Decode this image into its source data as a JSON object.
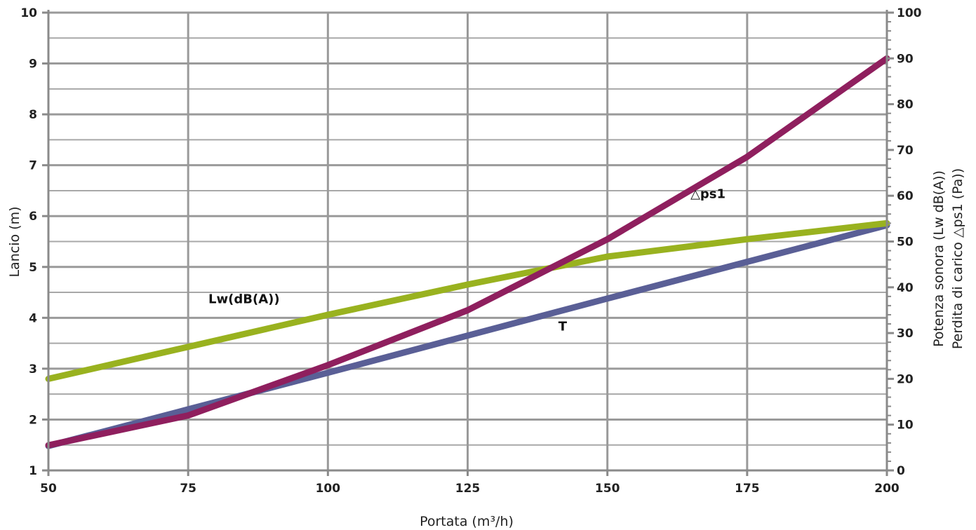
{
  "chart_data": {
    "type": "line",
    "xlabel": "Portata (m³/h)",
    "ylabel_left": "Lancio (m)",
    "ylabel_right": [
      "Potenza sonora (Lw dB(A))",
      "Perdita di carico △ps1 (Pa))"
    ],
    "xlim": [
      50,
      200
    ],
    "ylim_left": [
      1,
      10
    ],
    "ylim_right": [
      0,
      100
    ],
    "x_ticks": [
      "50",
      "75",
      "100",
      "125",
      "150",
      "175",
      "200"
    ],
    "y_left_ticks": [
      "1",
      "2",
      "3",
      "4",
      "5",
      "6",
      "7",
      "8",
      "9",
      "10"
    ],
    "y_right_ticks": [
      "0",
      "10",
      "20",
      "30",
      "40",
      "50",
      "60",
      "70",
      "80",
      "90",
      "100"
    ],
    "grid": true,
    "series": [
      {
        "name": "T",
        "axis": "left",
        "color": "#5a5f96",
        "x": [
          50,
          75,
          100,
          125,
          150,
          175,
          200
        ],
        "y": [
          1.48,
          2.2,
          2.92,
          3.65,
          4.38,
          5.1,
          5.82
        ]
      },
      {
        "name": "Lw(dB(A))",
        "axis": "right",
        "color": "#99b21f",
        "x": [
          50,
          75,
          100,
          125,
          150,
          175,
          200
        ],
        "y": [
          20,
          27,
          34,
          40.6,
          46.7,
          50.5,
          54
        ]
      },
      {
        "name": "△ps1",
        "axis": "right",
        "color": "#8f1f5e",
        "x": [
          50,
          75,
          100,
          125,
          150,
          175,
          200
        ],
        "y": [
          5.5,
          12,
          23,
          35,
          50.5,
          68.5,
          90
        ]
      }
    ],
    "annotations": [
      {
        "text": "Lw(dB(A))",
        "x": 85,
        "y_right": 36.5
      },
      {
        "text": "T",
        "x": 142,
        "y_left": 3.75
      },
      {
        "text": "△ps1",
        "x": 168,
        "y_right": 59.5
      }
    ]
  }
}
